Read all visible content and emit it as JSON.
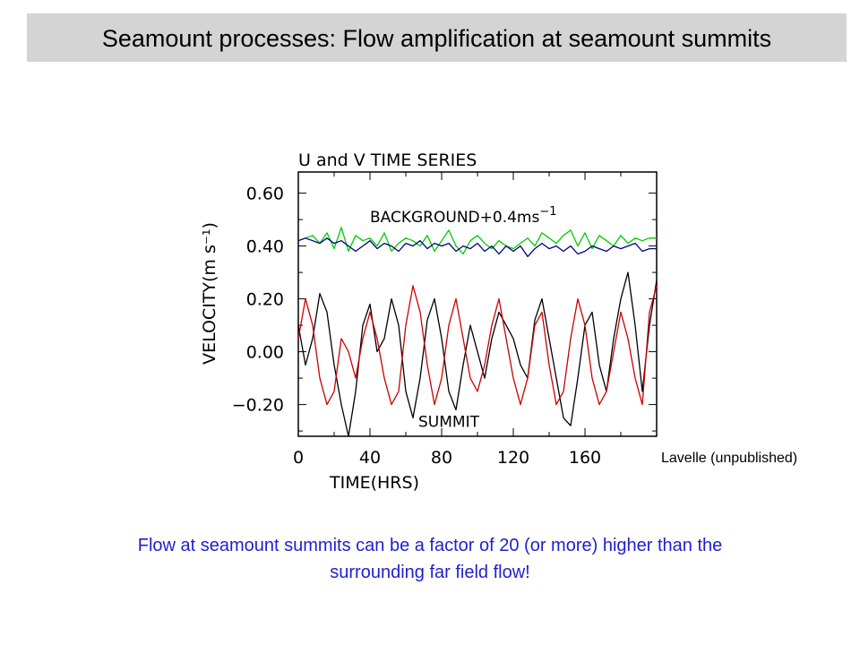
{
  "title": "Seamount processes:  Flow amplification at seamount summits",
  "credit": "Lavelle (unpublished)",
  "caption": {
    "line1": "Flow at seamount summits can be a factor of 20 (or more) higher than the",
    "line2": "surrounding far field flow!"
  },
  "chart_data": {
    "type": "line",
    "title": "U and V TIME SERIES",
    "xlabel": "TIME(HRS)",
    "ylabel": "VELOCITY(m s⁻¹)",
    "xlim": [
      0,
      200
    ],
    "ylim": [
      -0.32,
      0.68
    ],
    "x_ticks": [
      0,
      40,
      80,
      120,
      160
    ],
    "x_tick_labels": [
      "0",
      "40",
      "80",
      "120",
      "160"
    ],
    "y_ticks": [
      -0.2,
      0.0,
      0.2,
      0.4,
      0.6
    ],
    "y_tick_labels": [
      "−0.20",
      "0.00",
      "0.20",
      "0.40",
      "0.60"
    ],
    "annotations": [
      {
        "text": "BACKGROUND+0.4ms",
        "superscript": "−1",
        "x": 40,
        "y": 0.49
      },
      {
        "text": "SUMMIT",
        "x": 67,
        "y": -0.285
      }
    ],
    "series": [
      {
        "color": "#00cc00",
        "x": [
          0,
          4,
          8,
          12,
          16,
          20,
          24,
          28,
          32,
          36,
          40,
          44,
          48,
          52,
          56,
          60,
          64,
          68,
          72,
          76,
          80,
          84,
          88,
          92,
          96,
          100,
          104,
          108,
          112,
          116,
          120,
          124,
          128,
          132,
          136,
          140,
          144,
          148,
          152,
          156,
          160,
          164,
          168,
          172,
          176,
          180,
          184,
          188,
          192,
          196,
          200
        ],
        "y": [
          0.42,
          0.43,
          0.44,
          0.41,
          0.45,
          0.39,
          0.47,
          0.38,
          0.44,
          0.42,
          0.43,
          0.4,
          0.45,
          0.38,
          0.41,
          0.43,
          0.42,
          0.4,
          0.44,
          0.38,
          0.42,
          0.46,
          0.4,
          0.37,
          0.42,
          0.44,
          0.41,
          0.39,
          0.42,
          0.4,
          0.39,
          0.41,
          0.43,
          0.4,
          0.45,
          0.43,
          0.41,
          0.44,
          0.46,
          0.4,
          0.45,
          0.39,
          0.44,
          0.42,
          0.4,
          0.44,
          0.41,
          0.43,
          0.42,
          0.43,
          0.43
        ]
      },
      {
        "color": "#000080",
        "x": [
          0,
          4,
          8,
          12,
          16,
          20,
          24,
          28,
          32,
          36,
          40,
          44,
          48,
          52,
          56,
          60,
          64,
          68,
          72,
          76,
          80,
          84,
          88,
          92,
          96,
          100,
          104,
          108,
          112,
          116,
          120,
          124,
          128,
          132,
          136,
          140,
          144,
          148,
          152,
          156,
          160,
          164,
          168,
          172,
          176,
          180,
          184,
          188,
          192,
          196,
          200
        ],
        "y": [
          0.42,
          0.43,
          0.42,
          0.41,
          0.43,
          0.41,
          0.42,
          0.4,
          0.38,
          0.4,
          0.42,
          0.39,
          0.41,
          0.4,
          0.38,
          0.41,
          0.4,
          0.42,
          0.39,
          0.41,
          0.4,
          0.41,
          0.38,
          0.4,
          0.39,
          0.41,
          0.38,
          0.4,
          0.37,
          0.4,
          0.38,
          0.4,
          0.36,
          0.39,
          0.41,
          0.39,
          0.4,
          0.38,
          0.4,
          0.37,
          0.38,
          0.4,
          0.39,
          0.38,
          0.4,
          0.39,
          0.4,
          0.41,
          0.38,
          0.39,
          0.39
        ]
      },
      {
        "color": "#000000",
        "x": [
          0,
          4,
          8,
          12,
          16,
          20,
          24,
          28,
          32,
          36,
          40,
          44,
          48,
          52,
          56,
          60,
          64,
          68,
          72,
          76,
          80,
          84,
          88,
          92,
          96,
          100,
          104,
          108,
          112,
          116,
          120,
          124,
          128,
          132,
          136,
          140,
          144,
          148,
          152,
          156,
          160,
          164,
          168,
          172,
          176,
          180,
          184,
          188,
          192,
          196,
          200
        ],
        "y": [
          0.1,
          -0.05,
          0.05,
          0.22,
          0.15,
          -0.05,
          -0.2,
          -0.32,
          -0.15,
          0.1,
          0.18,
          0.0,
          0.05,
          0.2,
          0.1,
          -0.15,
          -0.25,
          -0.1,
          0.12,
          0.2,
          0.05,
          -0.15,
          -0.22,
          -0.05,
          0.1,
          0.0,
          -0.1,
          0.05,
          0.15,
          0.1,
          0.05,
          -0.05,
          -0.1,
          0.12,
          0.2,
          0.05,
          -0.1,
          -0.25,
          -0.28,
          -0.1,
          0.1,
          0.15,
          -0.05,
          -0.15,
          0.05,
          0.2,
          0.3,
          0.1,
          -0.15,
          0.1,
          0.27
        ]
      },
      {
        "color": "#cc0000",
        "x": [
          0,
          4,
          8,
          12,
          16,
          20,
          24,
          28,
          32,
          36,
          40,
          44,
          48,
          52,
          56,
          60,
          64,
          68,
          72,
          76,
          80,
          84,
          88,
          92,
          96,
          100,
          104,
          108,
          112,
          116,
          120,
          124,
          128,
          132,
          136,
          140,
          144,
          148,
          152,
          156,
          160,
          164,
          168,
          172,
          176,
          180,
          184,
          188,
          192,
          196,
          200
        ],
        "y": [
          0.05,
          0.2,
          0.1,
          -0.1,
          -0.2,
          -0.15,
          0.05,
          0.0,
          -0.1,
          0.05,
          0.15,
          0.05,
          -0.1,
          -0.2,
          -0.15,
          0.1,
          0.25,
          0.15,
          -0.05,
          -0.2,
          -0.1,
          0.1,
          0.2,
          0.05,
          -0.1,
          -0.15,
          -0.05,
          0.1,
          0.2,
          0.05,
          -0.1,
          -0.2,
          -0.1,
          0.1,
          0.15,
          -0.05,
          -0.2,
          -0.15,
          0.05,
          0.2,
          0.1,
          -0.1,
          -0.2,
          -0.15,
          0.0,
          0.15,
          0.05,
          -0.1,
          -0.2,
          0.15,
          0.25
        ]
      }
    ]
  }
}
